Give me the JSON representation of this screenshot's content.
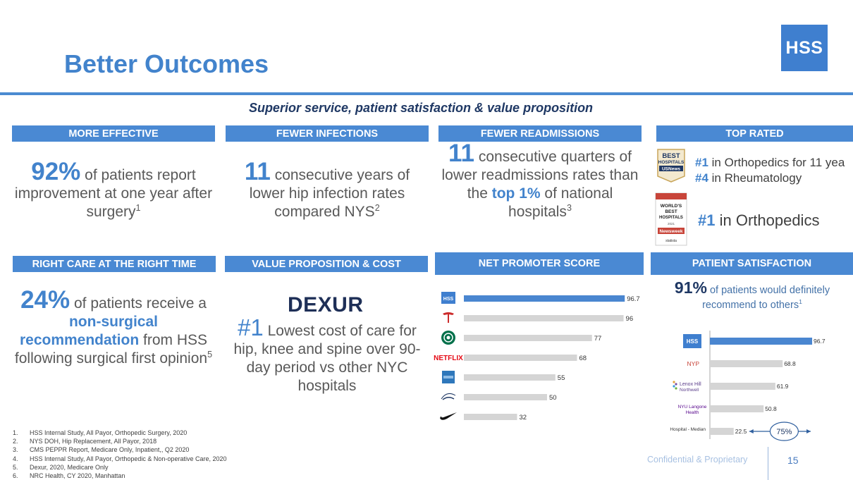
{
  "title": "Better Outcomes",
  "logo_text": "HSS",
  "subtitle": "Superior service, patient satisfaction & value proposition",
  "sections": {
    "effective": {
      "header": "MORE EFFECTIVE",
      "stat": "92%",
      "text1": " of patients report improvement at one year after surgery",
      "sup": "1"
    },
    "infections": {
      "header": "FEWER INFECTIONS",
      "stat": "11",
      "text1": " consecutive years of lower hip infection rates compared NYS",
      "sup": "2"
    },
    "readmissions": {
      "header": "FEWER READMISSIONS",
      "stat": "11",
      "text1": " consecutive quarters of lower readmissions rates than the ",
      "accent": "top 1%",
      "text2": " of national hospitals",
      "sup": "3"
    },
    "top_rated": {
      "header": "TOP RATED",
      "rank1_a": "#1",
      "rank1_b": " in Orthopedics for 11 yea",
      "rank2_a": "#4",
      "rank2_b": " in Rheumatology",
      "rank3_a": "#1",
      "rank3_b": " in Orthopedics",
      "usnews_badge": [
        "BEST",
        "HOSPITALS",
        "USNews"
      ],
      "newsweek_badge": [
        "WORLD'S",
        "BEST",
        "HOSPITALS",
        "2021",
        "Newsweek",
        "statista"
      ]
    },
    "right_care": {
      "header": "RIGHT CARE AT THE RIGHT TIME",
      "stat": "24%",
      "text1": " of patients receive a ",
      "accent": "non-surgical recommendation",
      "text2": " from HSS following surgical first opinion",
      "sup": "5"
    },
    "value": {
      "header": "VALUE PROPOSITION & COST",
      "logo": "DEXUR",
      "stat": "#1",
      "text1": " Lowest cost of care for hip, knee and spine over 90-day period vs other NYC hospitals"
    },
    "nps": {
      "header": "NET PROMOTER SCORE"
    },
    "satisfaction": {
      "header": "PATIENT SATISFACTION",
      "stat": "91%",
      "text1": " of patients would definitely recommend to others",
      "sup": "1"
    }
  },
  "chart_data": [
    {
      "type": "bar",
      "orientation": "horizontal",
      "title": "NET PROMOTER SCORE",
      "categories": [
        "HSS",
        "Tesla",
        "Starbucks",
        "NETFLIX",
        "American Express",
        "Disney",
        "Nike"
      ],
      "values": [
        96.7,
        96,
        77,
        68,
        55,
        50,
        32
      ],
      "value_labels": [
        "96.7",
        "96",
        "77",
        "68",
        "55",
        "50",
        "32"
      ],
      "highlight_index": 0,
      "colors": {
        "highlight": "#4a86d0",
        "default": "#d5d5d5"
      },
      "xlim": [
        0,
        100
      ]
    },
    {
      "type": "bar",
      "orientation": "horizontal",
      "title": "PATIENT SATISFACTION",
      "categories": [
        "HSS",
        "NYP",
        "Lenox Hill Northwell",
        "NYU Langone Health",
        "Hospital - Median"
      ],
      "category_labels": [
        "HSS",
        "NYP",
        "Lenox Hill",
        "Northwell",
        "NYU Langone",
        "Health",
        "Hospital - Median"
      ],
      "values": [
        96.7,
        68.8,
        61.9,
        50.8,
        22.5
      ],
      "value_labels": [
        "96.7",
        "68.8",
        "61.9",
        "50.8",
        "22.5"
      ],
      "highlight_index": 0,
      "annotation": "75%",
      "colors": {
        "highlight": "#4a86d0",
        "default": "#d5d5d5"
      },
      "xlim": [
        0,
        100
      ]
    }
  ],
  "footnotes": [
    {
      "num": "1.",
      "text": "HSS Internal Study, All Payor, Orthopedic Surgery, 2020"
    },
    {
      "num": "2.",
      "text": "NYS DOH, Hip Replacement, All Payor, 2018"
    },
    {
      "num": "3.",
      "text": "CMS PEPPR Report, Medicare Only,  Inpatient,, Q2 2020"
    },
    {
      "num": "4.",
      "text": "HSS Internal Study, All Payor, Orthopedic & Non-operative Care, 2020"
    },
    {
      "num": "5.",
      "text": "Dexur, 2020, Medicare Only"
    },
    {
      "num": "6.",
      "text": "NRC Health, CY 2020, Manhattan"
    }
  ],
  "footer": {
    "confidential": "Confidential & Proprietary",
    "page": "15"
  }
}
